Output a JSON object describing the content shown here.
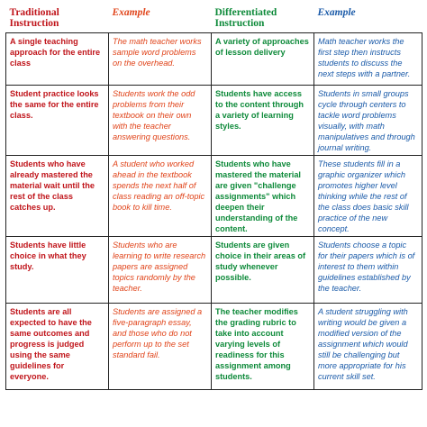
{
  "headers": {
    "traditional": "Traditional Instruction",
    "example1": "Example",
    "differentiated": "Differentiated Instruction",
    "example2": "Example"
  },
  "colors": {
    "traditional": "#c0151b",
    "example1": "#e0441a",
    "differentiated": "#0e8a3a",
    "example2": "#1a5aa8"
  },
  "rows": [
    {
      "traditional": "A single teaching approach for the entire class",
      "example1": "The math teacher works sample word problems on the overhead.",
      "differentiated": "A variety of approaches of lesson delivery",
      "example2": "Math teacher works the first step then instructs students to discuss the next steps with a partner."
    },
    {
      "traditional": "Student practice looks the same for the entire class.",
      "example1": "Students work the odd problems from their textbook on their own with the teacher answering questions.",
      "differentiated": "Students have access to the content through a variety of learning styles.",
      "example2": "Students in small groups cycle through centers to tackle word problems visually, with math manipulatives and through journal writing."
    },
    {
      "traditional": "Students who have already mastered the material wait until the rest of the class catches up.",
      "example1": "A student who worked ahead in the textbook spends the next half of class reading an off-topic book to kill time.",
      "differentiated": "Students who have mastered the material are given \"challenge assignments\" which deepen their understanding of the content.",
      "example2": "These students fill in a graphic organizer which promotes higher level thinking while the rest of the class does basic skill practice of the new concept."
    },
    {
      "traditional": "Students have little choice in what they study.",
      "example1": "Students who are learning to write research papers are assigned topics randomly by the teacher.",
      "differentiated": "Students are given choice in their areas of study whenever possible.",
      "example2": "Students choose a topic for their papers which is of interest to them within guidelines established by the teacher."
    },
    {
      "traditional": "Students are all expected to have the same outcomes and progress is judged using the same guidelines for everyone.",
      "example1": "Students are assigned a five-paragraph essay, and those who do not perform up to the set standard fail.",
      "differentiated": "The teacher modifies the grading rubric to take into account varying levels of readiness for this assignment among students.",
      "example2": "A student struggling with writing would be given a modified version of the assignment which would still be challenging but more appropriate for his current skill set."
    }
  ]
}
